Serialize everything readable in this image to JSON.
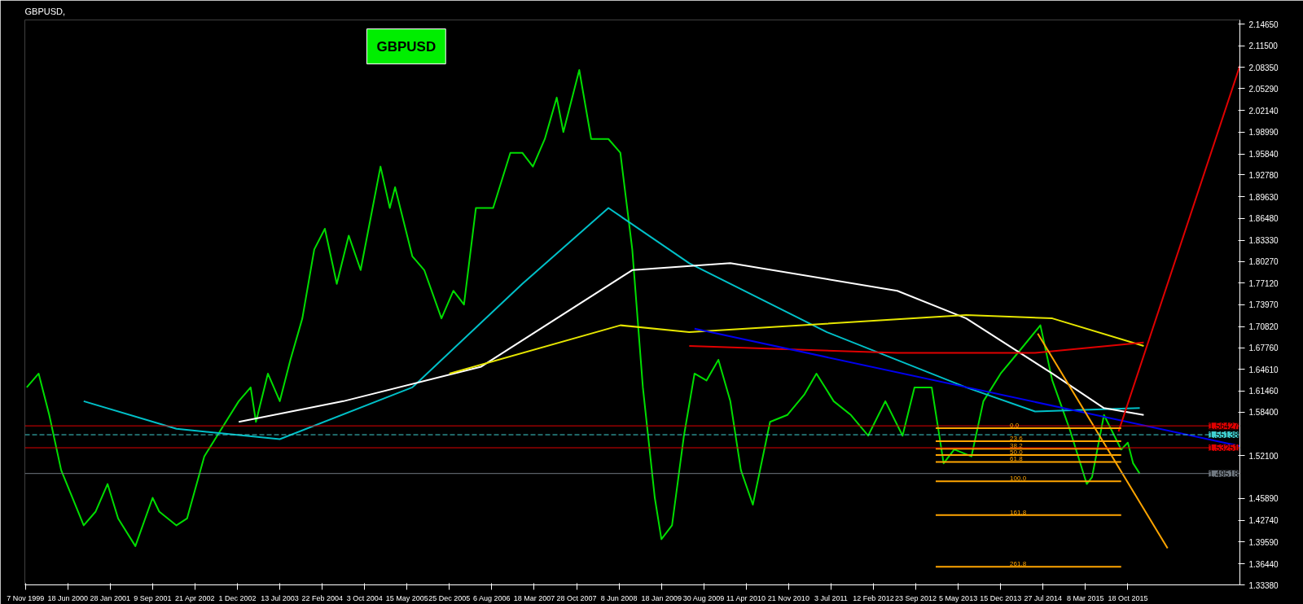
{
  "chart_data": {
    "type": "line",
    "title": "GBPUSD,",
    "grid": false,
    "tick_labels": "xy",
    "xlim": [
      "1999-11-04",
      "2017-06-01"
    ],
    "ylim": [
      1.3338,
      2.1525
    ],
    "yticks": [
      {
        "value": 1.3338,
        "label": "1.33380"
      },
      {
        "value": 1.3644,
        "label": "1.36440"
      },
      {
        "value": 1.3959,
        "label": "1.39590"
      },
      {
        "value": 1.4274,
        "label": "1.42740"
      },
      {
        "value": 1.4589,
        "label": "1.45890"
      },
      {
        "value": 1.521,
        "label": "1.52100"
      },
      {
        "value": 1.584,
        "label": "1.58400"
      },
      {
        "value": 1.6146,
        "label": "1.61460"
      },
      {
        "value": 1.6461,
        "label": "1.64610"
      },
      {
        "value": 1.6776,
        "label": "1.67760"
      },
      {
        "value": 1.7082,
        "label": "1.70820"
      },
      {
        "value": 1.7397,
        "label": "1.73970"
      },
      {
        "value": 1.7712,
        "label": "1.77120"
      },
      {
        "value": 1.8027,
        "label": "1.80270"
      },
      {
        "value": 1.8333,
        "label": "1.83330"
      },
      {
        "value": 1.8648,
        "label": "1.86480"
      },
      {
        "value": 1.8963,
        "label": "1.89630"
      },
      {
        "value": 1.9278,
        "label": "1.92780"
      },
      {
        "value": 1.9584,
        "label": "1.95840"
      },
      {
        "value": 1.9899,
        "label": "1.98990"
      },
      {
        "value": 2.0214,
        "label": "2.02140"
      },
      {
        "value": 2.0529,
        "label": "2.05290"
      },
      {
        "value": 2.0835,
        "label": "2.08350"
      },
      {
        "value": 2.115,
        "label": "2.11500"
      },
      {
        "value": 2.1465,
        "label": "2.14650"
      }
    ],
    "xticks": [
      {
        "value": "1999-11-07",
        "label": "7 Nov 1999"
      },
      {
        "value": "2000-06-18",
        "label": "18 Jun 2000"
      },
      {
        "value": "2001-01-28",
        "label": "28 Jan 2001"
      },
      {
        "value": "2001-09-09",
        "label": "9 Sep 2001"
      },
      {
        "value": "2002-04-21",
        "label": "21 Apr 2002"
      },
      {
        "value": "2002-12-01",
        "label": "1 Dec 2002"
      },
      {
        "value": "2003-07-13",
        "label": "13 Jul 2003"
      },
      {
        "value": "2004-02-22",
        "label": "22 Feb 2004"
      },
      {
        "value": "2004-10-03",
        "label": "3 Oct 2004"
      },
      {
        "value": "2005-05-15",
        "label": "15 May 2005"
      },
      {
        "value": "2005-12-25",
        "label": "25 Dec 2005"
      },
      {
        "value": "2006-08-06",
        "label": "6 Aug 2006"
      },
      {
        "value": "2007-03-18",
        "label": "18 Mar 2007"
      },
      {
        "value": "2007-10-28",
        "label": "28 Oct 2007"
      },
      {
        "value": "2008-06-08",
        "label": "8 Jun 2008"
      },
      {
        "value": "2009-01-18",
        "label": "18 Jan 2009"
      },
      {
        "value": "2009-08-30",
        "label": "30 Aug 2009"
      },
      {
        "value": "2010-04-11",
        "label": "11 Apr 2010"
      },
      {
        "value": "2010-11-21",
        "label": "21 Nov 2010"
      },
      {
        "value": "2011-07-03",
        "label": "3 Jul 2011"
      },
      {
        "value": "2012-02-12",
        "label": "12 Feb 2012"
      },
      {
        "value": "2012-09-23",
        "label": "23 Sep 2012"
      },
      {
        "value": "2013-05-05",
        "label": "5 May 2013"
      },
      {
        "value": "2013-12-15",
        "label": "15 Dec 2013"
      },
      {
        "value": "2014-07-27",
        "label": "27 Jul 2014"
      },
      {
        "value": "2015-03-08",
        "label": "8 Mar 2015"
      },
      {
        "value": "2015-10-18",
        "label": "18 Oct 2015"
      }
    ],
    "series": [
      {
        "color": "#00dd00",
        "x": [
          "1999-11-14",
          "2000-01-16",
          "2000-03-12",
          "2000-05-14",
          "2000-09-10",
          "2000-11-12",
          "2001-01-14",
          "2001-03-11",
          "2001-06-10",
          "2001-09-09",
          "2001-10-14",
          "2002-01-13",
          "2002-03-10",
          "2002-06-09",
          "2002-09-08",
          "2002-12-08",
          "2003-02-09",
          "2003-03-09",
          "2003-05-11",
          "2003-07-13",
          "2003-09-07",
          "2003-11-09",
          "2004-01-11",
          "2004-03-07",
          "2004-05-09",
          "2004-07-11",
          "2004-09-12",
          "2004-11-14",
          "2004-12-26",
          "2005-02-13",
          "2005-03-13",
          "2005-06-12",
          "2005-08-14",
          "2005-11-13",
          "2006-01-15",
          "2006-03-12",
          "2006-05-14",
          "2006-08-13",
          "2006-11-12",
          "2007-01-14",
          "2007-03-11",
          "2007-05-13",
          "2007-07-15",
          "2007-08-19",
          "2007-11-11",
          "2008-01-13",
          "2008-04-13",
          "2008-06-15",
          "2008-08-17",
          "2008-10-12",
          "2008-12-14",
          "2009-01-18",
          "2009-03-15",
          "2009-05-17",
          "2009-07-12",
          "2009-09-13",
          "2009-11-15",
          "2010-01-17",
          "2010-03-14",
          "2010-05-16",
          "2010-08-15",
          "2010-11-14",
          "2011-02-13",
          "2011-04-17",
          "2011-07-17",
          "2011-10-16",
          "2012-01-15",
          "2012-04-15",
          "2012-07-15",
          "2012-09-16",
          "2012-12-16",
          "2013-02-17",
          "2013-04-14",
          "2013-07-14",
          "2013-09-15",
          "2013-12-15",
          "2014-03-16",
          "2014-07-13",
          "2014-09-14",
          "2014-12-14",
          "2015-03-15",
          "2015-04-12",
          "2015-06-14",
          "2015-09-13",
          "2015-10-18",
          "2015-11-15",
          "2015-12-20"
        ],
        "values": [
          1.62,
          1.64,
          1.58,
          1.5,
          1.42,
          1.44,
          1.48,
          1.43,
          1.39,
          1.46,
          1.44,
          1.42,
          1.43,
          1.52,
          1.56,
          1.6,
          1.62,
          1.57,
          1.64,
          1.6,
          1.66,
          1.72,
          1.82,
          1.85,
          1.77,
          1.84,
          1.79,
          1.88,
          1.94,
          1.88,
          1.91,
          1.81,
          1.79,
          1.72,
          1.76,
          1.74,
          1.88,
          1.88,
          1.96,
          1.96,
          1.94,
          1.98,
          2.04,
          1.99,
          2.08,
          1.98,
          1.98,
          1.96,
          1.82,
          1.62,
          1.46,
          1.4,
          1.42,
          1.55,
          1.64,
          1.63,
          1.66,
          1.6,
          1.5,
          1.45,
          1.57,
          1.58,
          1.61,
          1.64,
          1.6,
          1.58,
          1.55,
          1.6,
          1.55,
          1.62,
          1.62,
          1.51,
          1.53,
          1.52,
          1.6,
          1.64,
          1.67,
          1.71,
          1.63,
          1.56,
          1.48,
          1.49,
          1.58,
          1.53,
          1.54,
          1.51,
          1.495
        ]
      },
      {
        "color": "#00c0c8",
        "x": [
          "2000-09-10",
          "2002-01-13",
          "2003-07-13",
          "2005-06-12",
          "2007-01-14",
          "2008-04-13",
          "2009-06-14",
          "2011-06-12",
          "2013-06-16",
          "2014-06-15",
          "2015-12-20"
        ],
        "values": [
          1.6,
          1.56,
          1.545,
          1.62,
          1.77,
          1.88,
          1.8,
          1.7,
          1.62,
          1.585,
          1.59
        ]
      },
      {
        "color": "#ffffff",
        "x": [
          "2002-12-08",
          "2004-06-13",
          "2006-06-11",
          "2008-08-17",
          "2010-01-17",
          "2012-06-17",
          "2013-06-16",
          "2014-09-14",
          "2015-06-14",
          "2016-01-10"
        ],
        "values": [
          1.57,
          1.6,
          1.65,
          1.79,
          1.8,
          1.76,
          1.72,
          1.64,
          1.59,
          1.58
        ]
      },
      {
        "color": "#e6e600",
        "x": [
          "2005-12-25",
          "2008-06-15",
          "2009-06-14",
          "2013-06-16",
          "2014-09-14",
          "2016-01-10"
        ],
        "values": [
          1.64,
          1.71,
          1.7,
          1.725,
          1.72,
          1.68
        ]
      },
      {
        "color": "#e00000",
        "x": [
          "2009-06-14",
          "2012-06-17",
          "2014-06-15",
          "2016-01-10"
        ],
        "values": [
          1.68,
          1.67,
          1.67,
          1.685
        ]
      },
      {
        "color": "#0000ee",
        "x": [
          "2009-07-12",
          "2017-06-01"
        ],
        "values": [
          1.705,
          1.535
        ]
      },
      {
        "color": "#e00000",
        "x": [
          "2015-08-30",
          "2017-06-01"
        ],
        "values": [
          1.556,
          2.086
        ]
      },
      {
        "color": "#ffa500",
        "x": [
          "2014-06-29",
          "2016-05-15"
        ],
        "values": [
          1.698,
          1.387
        ]
      },
      {
        "color": "#ffa500",
        "x": [
          "2013-01-06",
          "2015-09-13"
        ],
        "values": [
          1.561,
          1.561
        ]
      },
      {
        "color": "#ffa500",
        "x": [
          "2013-01-06",
          "2015-09-13"
        ],
        "values": [
          1.542,
          1.542
        ]
      },
      {
        "color": "#ffa500",
        "x": [
          "2013-01-06",
          "2015-09-13"
        ],
        "values": [
          1.531,
          1.531
        ]
      },
      {
        "color": "#ffa500",
        "x": [
          "2013-01-06",
          "2015-09-13"
        ],
        "values": [
          1.522,
          1.522
        ]
      },
      {
        "color": "#ffa500",
        "x": [
          "2013-01-06",
          "2015-09-13"
        ],
        "values": [
          1.512,
          1.512
        ]
      },
      {
        "color": "#ffa500",
        "x": [
          "2013-01-06",
          "2015-09-13"
        ],
        "values": [
          1.484,
          1.484
        ]
      },
      {
        "color": "#ffa500",
        "x": [
          "2013-01-06",
          "2015-09-13"
        ],
        "values": [
          1.435,
          1.435
        ]
      },
      {
        "color": "#ffa500",
        "x": [
          "2013-01-06",
          "2015-09-13"
        ],
        "values": [
          1.36,
          1.36
        ]
      }
    ],
    "ref_lines": [
      {
        "axis": "y",
        "value": 1.56427,
        "label": "1.56427",
        "color": "#e00000",
        "line_style": "solid"
      },
      {
        "axis": "y",
        "value": 1.55138,
        "label": "1.55138",
        "color": "#40d0d0",
        "line_style": "dashed"
      },
      {
        "axis": "y",
        "value": 1.53251,
        "label": "1.53251",
        "color": "#e00000",
        "line_style": "solid"
      },
      {
        "axis": "y",
        "value": 1.49518,
        "label": "1.49518",
        "color": "#707880",
        "line_style": "solid"
      }
    ],
    "annotations": [
      "GBPUSD",
      {
        "text": "0.0",
        "x": "2014-02-02",
        "y": 1.561
      },
      {
        "text": "23.6",
        "x": "2014-02-02",
        "y": 1.542
      },
      {
        "text": "38.2",
        "x": "2014-02-02",
        "y": 1.531
      },
      {
        "text": "50.0",
        "x": "2014-02-02",
        "y": 1.522
      },
      {
        "text": "61.8",
        "x": "2014-02-02",
        "y": 1.512
      },
      {
        "text": "100.0",
        "x": "2014-02-02",
        "y": 1.484
      },
      {
        "text": "161.8",
        "x": "2014-02-02",
        "y": 1.435
      },
      {
        "text": "261.8",
        "x": "2014-02-02",
        "y": 1.36
      }
    ]
  }
}
